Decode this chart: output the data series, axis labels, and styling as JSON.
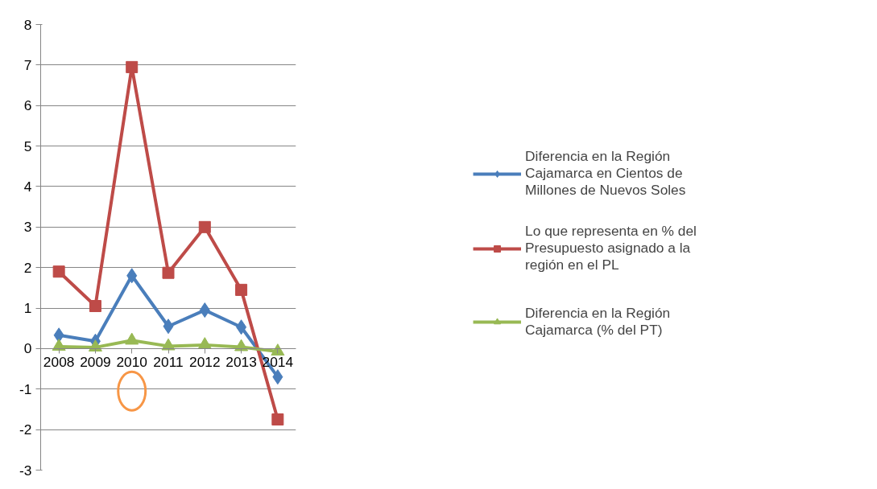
{
  "chart_data": {
    "type": "line",
    "categories": [
      "2008",
      "2009",
      "2010",
      "2011",
      "2012",
      "2013",
      "2014"
    ],
    "series": [
      {
        "name": "Diferencia en la Región Cajamarca en Cientos de Millones de Nuevos Soles",
        "color": "#4a7ebb",
        "marker": "diamond",
        "values": [
          0.33,
          0.18,
          1.8,
          0.55,
          0.95,
          0.53,
          -0.7
        ]
      },
      {
        "name": "Lo que representa en % del Presupuesto asignado a la región en el PL",
        "color": "#be4b48",
        "marker": "square",
        "values": [
          1.9,
          1.05,
          6.95,
          1.87,
          3.0,
          1.45,
          -1.75
        ]
      },
      {
        "name": "Diferencia en la Región Cajamarca (% del PT)",
        "color": "#98b954",
        "marker": "triangle",
        "values": [
          0.05,
          0.03,
          0.2,
          0.06,
          0.09,
          0.04,
          -0.07
        ]
      }
    ],
    "ylim": [
      -3,
      8
    ],
    "yticks": [
      -3,
      -2,
      -1,
      0,
      1,
      2,
      3,
      4,
      5,
      6,
      7,
      8
    ],
    "grid": "y",
    "legend": "right",
    "line_style": "solid"
  }
}
